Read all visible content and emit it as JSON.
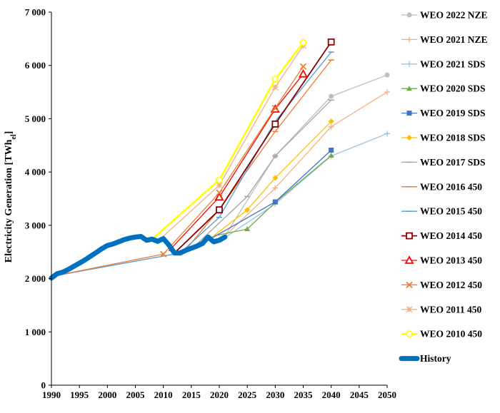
{
  "chart_data": {
    "type": "line",
    "title": "",
    "xlabel": "",
    "ylabel": "Electricity Generation [TWh",
    "ylabel_sub": "el",
    "ylabel_close": "]",
    "xlim": [
      1990,
      2050
    ],
    "ylim": [
      0,
      7000
    ],
    "xticks": [
      1990,
      1995,
      2000,
      2005,
      2010,
      2015,
      2020,
      2025,
      2030,
      2035,
      2040,
      2045,
      2050
    ],
    "xtick_labels": [
      "1990",
      "1995",
      "2000",
      "2005",
      "2010",
      "2015",
      "2020",
      "2025",
      "2030",
      "2035",
      "2040",
      "2045",
      "2050"
    ],
    "yticks": [
      0,
      1000,
      2000,
      3000,
      4000,
      5000,
      6000,
      7000
    ],
    "ytick_labels": [
      "0",
      "1 000",
      "2 000",
      "3 000",
      "4 000",
      "5 000",
      "6 000",
      "7 000"
    ],
    "grid": false,
    "legend_position": "right",
    "series": [
      {
        "name": "WEO 2022 NZE",
        "color": "#bfbfbf",
        "marker": "circle",
        "width": 1.3,
        "x": [
          2021,
          2030,
          2040,
          2050
        ],
        "y": [
          2800,
          4300,
          5420,
          5820
        ]
      },
      {
        "name": "WEO 2021 NZE",
        "color": "#f4b183",
        "marker": "cross",
        "width": 1.3,
        "x": [
          2020,
          2030,
          2040,
          2050
        ],
        "y": [
          2700,
          3700,
          4850,
          5500
        ]
      },
      {
        "name": "WEO 2021 SDS",
        "color": "#9dc3e6",
        "marker": "cross",
        "width": 1.3,
        "x": [
          2020,
          2030,
          2040,
          2050
        ],
        "y": [
          2700,
          3400,
          4300,
          4720
        ]
      },
      {
        "name": "WEO 2020 SDS",
        "color": "#70ad47",
        "marker": "triangle",
        "width": 1.3,
        "x": [
          2019,
          2025,
          2030,
          2040
        ],
        "y": [
          2800,
          2930,
          3430,
          4310
        ]
      },
      {
        "name": "WEO 2019 SDS",
        "color": "#4472c4",
        "marker": "square",
        "width": 1.3,
        "x": [
          2018,
          2030,
          2040
        ],
        "y": [
          2720,
          3440,
          4410
        ]
      },
      {
        "name": "WEO 2018 SDS",
        "color": "#ffc000",
        "marker": "diamond",
        "width": 1.3,
        "x": [
          2017,
          2025,
          2030,
          2040
        ],
        "y": [
          2640,
          3290,
          3890,
          4950
        ]
      },
      {
        "name": "WEO 2017 SDS",
        "color": "#a5a5a5",
        "marker": "dash",
        "width": 1.3,
        "x": [
          2016,
          2025,
          2030,
          2040
        ],
        "y": [
          2650,
          3540,
          4300,
          5350
        ]
      },
      {
        "name": "WEO 2016 450",
        "color": "#ed7d31",
        "marker": "dash",
        "width": 1.3,
        "x": [
          2014,
          2020,
          2030,
          2040
        ],
        "y": [
          2540,
          3300,
          4760,
          6100
        ]
      },
      {
        "name": "WEO 2015 450",
        "color": "#5b9bd5",
        "marker": "dash",
        "width": 1.3,
        "x": [
          1990,
          2013,
          2020,
          2030,
          2040
        ],
        "y": [
          2040,
          2480,
          3150,
          4950,
          6250
        ]
      },
      {
        "name": "WEO 2014 450",
        "color": "#8b0000",
        "marker": "square-open",
        "width": 1.8,
        "x": [
          2012,
          2020,
          2030,
          2040
        ],
        "y": [
          2480,
          3290,
          4900,
          6440
        ]
      },
      {
        "name": "WEO 2013 450",
        "color": "#ff0000",
        "marker": "triangle-open",
        "width": 1.3,
        "x": [
          2011,
          2020,
          2030,
          2035
        ],
        "y": [
          2520,
          3530,
          5180,
          5840
        ]
      },
      {
        "name": "WEO 2012 450",
        "color": "#ed7d31",
        "marker": "x",
        "width": 1.3,
        "x": [
          1990,
          2010,
          2020,
          2030,
          2035
        ],
        "y": [
          2040,
          2460,
          3610,
          5200,
          5980
        ]
      },
      {
        "name": "WEO 2011 450",
        "color": "#f4b183",
        "marker": "asterisk",
        "width": 1.3,
        "x": [
          2009,
          2020,
          2030,
          2035
        ],
        "y": [
          2700,
          3750,
          5590,
          6370
        ]
      },
      {
        "name": "WEO 2010 450",
        "color": "#ffff00",
        "marker": "circle-open",
        "width": 2.5,
        "x": [
          2008,
          2020,
          2030,
          2035
        ],
        "y": [
          2740,
          3850,
          5740,
          6430
        ]
      },
      {
        "name": "History",
        "color": "#0070c0",
        "marker": "none",
        "width": 7,
        "x": [
          1990,
          1991,
          1992,
          1993,
          1994,
          1995,
          1996,
          1997,
          1998,
          1999,
          2000,
          2001,
          2002,
          2003,
          2004,
          2005,
          2006,
          2007,
          2008,
          2009,
          2010,
          2011,
          2012,
          2013,
          2014,
          2015,
          2016,
          2017,
          2018,
          2019,
          2020,
          2021
        ],
        "y": [
          2010,
          2090,
          2120,
          2170,
          2230,
          2290,
          2350,
          2420,
          2490,
          2560,
          2620,
          2650,
          2690,
          2730,
          2760,
          2780,
          2790,
          2720,
          2740,
          2700,
          2750,
          2630,
          2480,
          2480,
          2530,
          2570,
          2610,
          2660,
          2780,
          2690,
          2720,
          2780
        ]
      }
    ]
  }
}
